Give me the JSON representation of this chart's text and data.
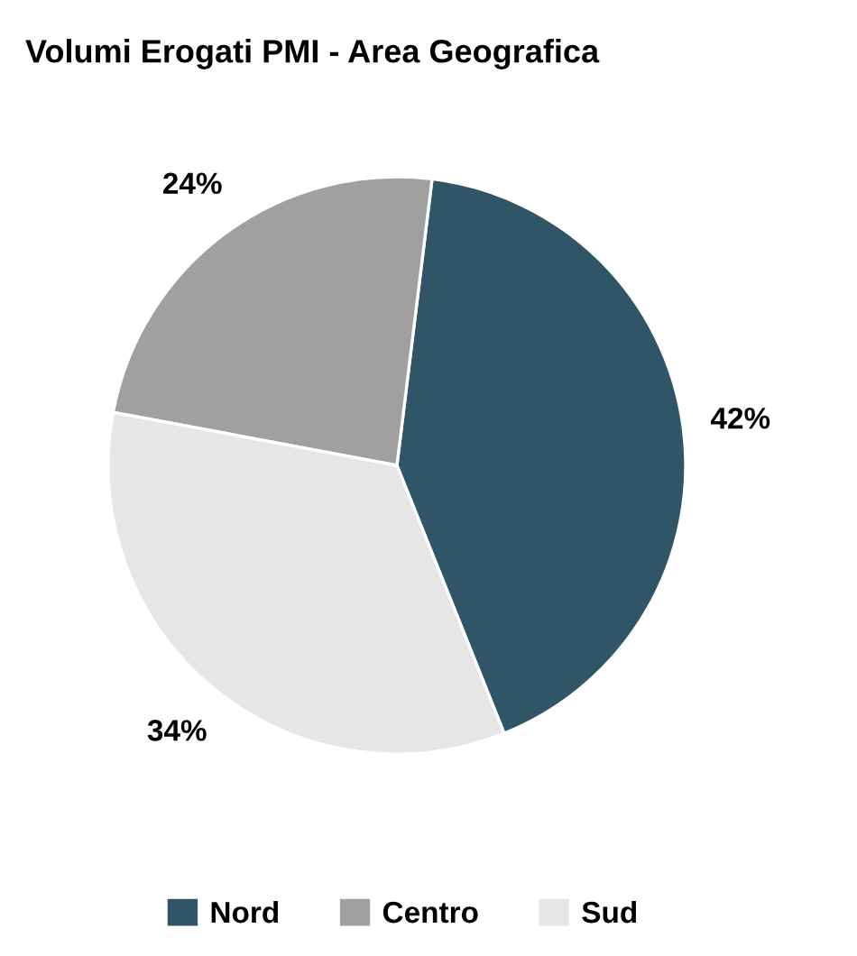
{
  "chart_data": {
    "type": "pie",
    "title": "Volumi Erogati PMI - Area Geografica",
    "categories": [
      "Nord",
      "Centro",
      "Sud"
    ],
    "values": [
      42,
      24,
      34
    ],
    "colors": [
      "#2f5567",
      "#a0a0a0",
      "#e6e6e6"
    ],
    "value_labels": [
      "42%",
      "24%",
      "34%"
    ],
    "legend": "bottom"
  }
}
